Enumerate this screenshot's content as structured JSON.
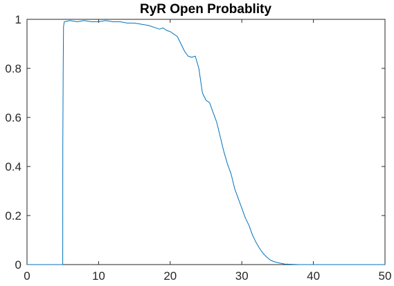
{
  "chart_data": {
    "type": "line",
    "title": "RyR Open Probablity",
    "xlabel": "",
    "ylabel": "",
    "xlim": [
      0,
      50
    ],
    "ylim": [
      0,
      1
    ],
    "x_ticks": [
      0,
      10,
      20,
      30,
      40,
      50
    ],
    "y_ticks": [
      0,
      0.2,
      0.4,
      0.6,
      0.8,
      1
    ],
    "x_tick_labels": [
      "0",
      "10",
      "20",
      "30",
      "40",
      "50"
    ],
    "y_tick_labels": [
      "0",
      "0.2",
      "0.4",
      "0.6",
      "0.8",
      "1"
    ],
    "grid": false,
    "box": true,
    "series": [
      {
        "color": "#0072BD",
        "x": [
          0,
          4.99,
          5.0,
          5.05,
          5.1,
          5.2,
          6,
          7,
          8,
          9,
          10,
          11,
          12,
          13,
          14,
          15,
          16,
          17,
          18,
          18.5,
          19,
          19.5,
          20,
          20.5,
          21,
          21.5,
          22,
          22.5,
          23,
          23.5,
          24,
          24.5,
          25,
          25.5,
          26,
          26.5,
          27,
          27.5,
          28,
          28.5,
          29,
          29.5,
          30,
          30.5,
          31,
          31.5,
          32,
          32.5,
          33,
          33.5,
          34,
          34.5,
          35,
          35.5,
          36,
          37,
          38,
          40,
          45,
          50
        ],
        "y": [
          0,
          0,
          0.48,
          0.78,
          0.97,
          0.99,
          0.995,
          0.99,
          0.995,
          0.99,
          0.99,
          0.995,
          0.99,
          0.99,
          0.985,
          0.985,
          0.98,
          0.975,
          0.965,
          0.96,
          0.965,
          0.955,
          0.95,
          0.94,
          0.93,
          0.9,
          0.87,
          0.85,
          0.845,
          0.85,
          0.8,
          0.7,
          0.67,
          0.66,
          0.62,
          0.58,
          0.52,
          0.46,
          0.41,
          0.37,
          0.31,
          0.27,
          0.23,
          0.19,
          0.16,
          0.12,
          0.09,
          0.065,
          0.045,
          0.03,
          0.018,
          0.012,
          0.008,
          0.005,
          0.002,
          0.001,
          0,
          0,
          0,
          0
        ]
      }
    ]
  }
}
